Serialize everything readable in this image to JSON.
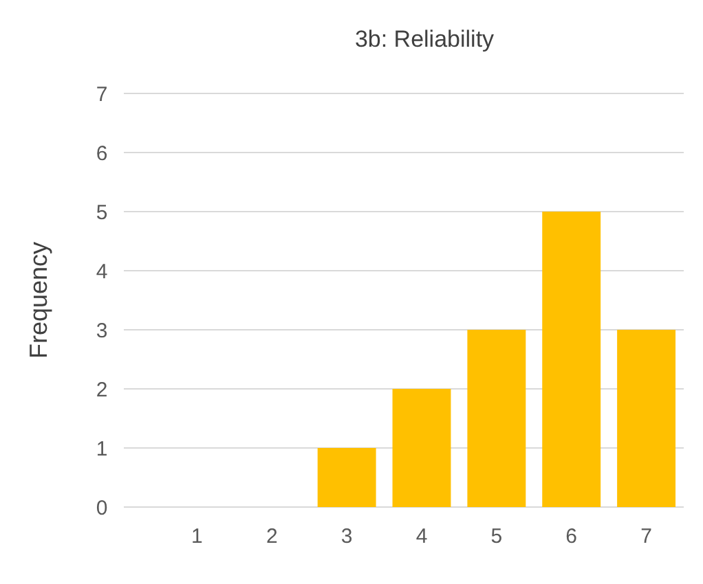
{
  "chart_data": {
    "type": "bar",
    "title": "3b: Reliability",
    "ylabel": "Frequency",
    "categories": [
      "1",
      "2",
      "3",
      "4",
      "5",
      "6",
      "7"
    ],
    "values": [
      0,
      0,
      1,
      2,
      3,
      5,
      3
    ],
    "color": "#ffc000",
    "ylim": [
      0,
      7
    ],
    "yticks": [
      0,
      1,
      2,
      3,
      4,
      5,
      6,
      7
    ],
    "grid": "y"
  }
}
